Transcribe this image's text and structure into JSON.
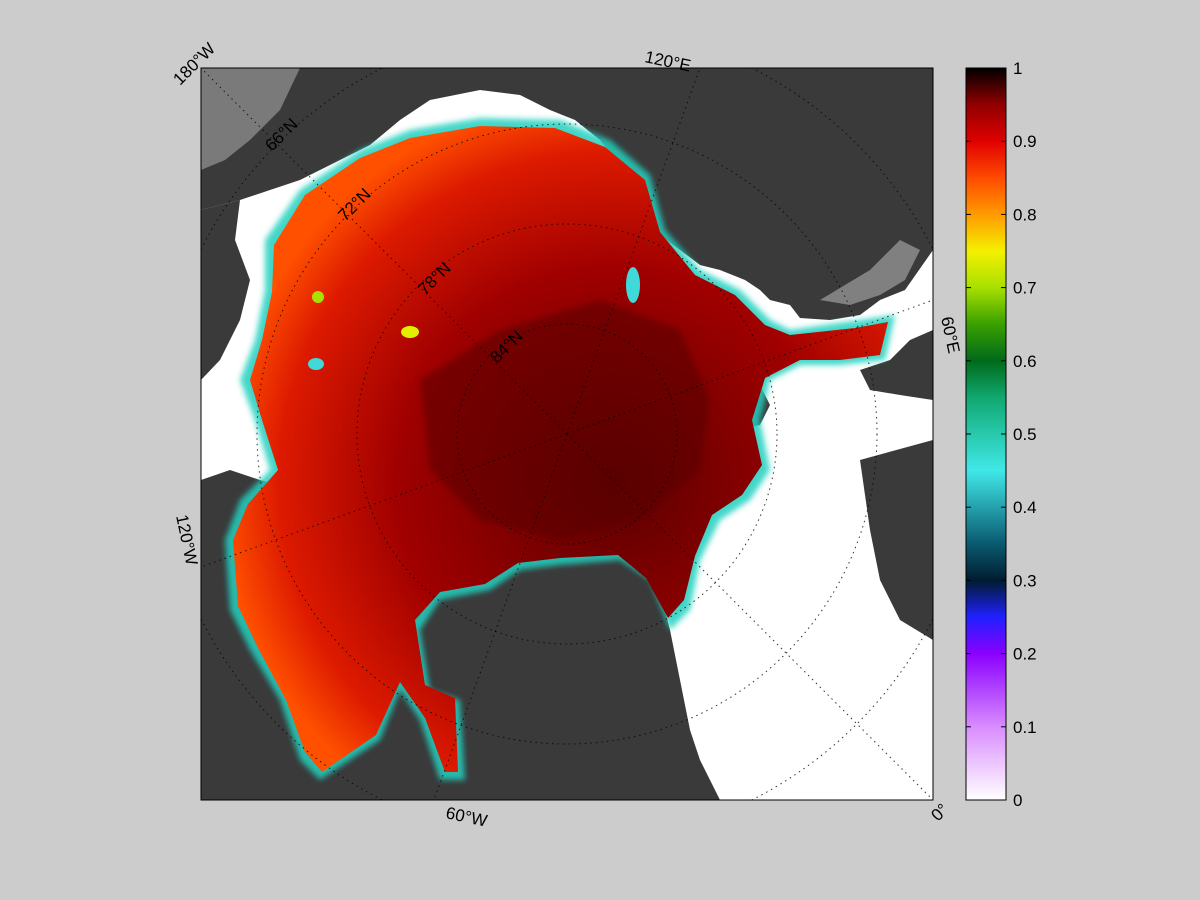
{
  "figure": {
    "background": "#cccccc",
    "land_color": "#3a3a3a",
    "open_water_color": "#ffffff",
    "unclassified_color": "#808080"
  },
  "map": {
    "projection": "polar-stereographic-north",
    "meridian_labels": [
      "180°W",
      "120°E",
      "60°E",
      "0°",
      "60°W",
      "120°W"
    ],
    "parallel_labels": [
      "66°N",
      "72°N",
      "78°N",
      "84°N"
    ],
    "gridlines": "dotted"
  },
  "colorbar": {
    "min": 0,
    "max": 1,
    "ticks": [
      "1",
      "0.9",
      "0.8",
      "0.7",
      "0.6",
      "0.5",
      "0.4",
      "0.3",
      "0.2",
      "0.1",
      "0"
    ],
    "colormap_stops": [
      {
        "v": 0.0,
        "c": "#ffffff"
      },
      {
        "v": 0.1,
        "c": "#d98cff"
      },
      {
        "v": 0.2,
        "c": "#8a00ff"
      },
      {
        "v": 0.25,
        "c": "#2020ff"
      },
      {
        "v": 0.3,
        "c": "#001c30"
      },
      {
        "v": 0.35,
        "c": "#0a5a70"
      },
      {
        "v": 0.45,
        "c": "#40e8e8"
      },
      {
        "v": 0.55,
        "c": "#10a870"
      },
      {
        "v": 0.6,
        "c": "#006a1a"
      },
      {
        "v": 0.65,
        "c": "#3aa000"
      },
      {
        "v": 0.7,
        "c": "#a8e000"
      },
      {
        "v": 0.75,
        "c": "#f4f000"
      },
      {
        "v": 0.8,
        "c": "#ff9a00"
      },
      {
        "v": 0.85,
        "c": "#ff4a00"
      },
      {
        "v": 0.9,
        "c": "#e00000"
      },
      {
        "v": 0.95,
        "c": "#900000"
      },
      {
        "v": 1.0,
        "c": "#000000"
      }
    ]
  }
}
